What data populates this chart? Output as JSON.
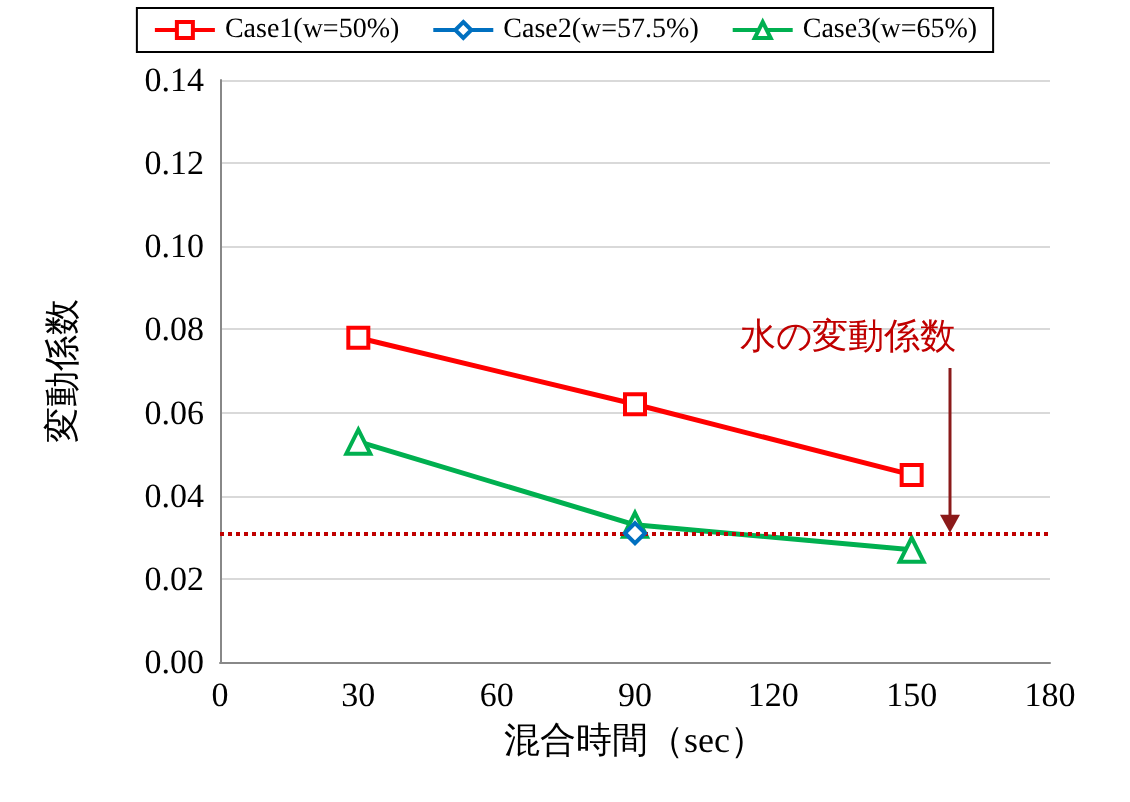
{
  "chart_data": {
    "type": "line",
    "xlabel": "混合時間（sec）",
    "ylabel": "変動係数",
    "x": [
      30,
      90,
      150
    ],
    "series": [
      {
        "name": "Case1(w=50%)",
        "color": "#ff0000",
        "marker": "square",
        "values": [
          0.078,
          0.062,
          0.045
        ]
      },
      {
        "name": "Case2(w=57.5%)",
        "color": "#0070c0",
        "marker": "diamond",
        "values": [
          null,
          0.031,
          null
        ]
      },
      {
        "name": "Case3(w=65%)",
        "color": "#00b050",
        "marker": "triangle",
        "values": [
          0.053,
          0.033,
          0.027
        ]
      }
    ],
    "xlim": [
      0,
      180
    ],
    "xticks": [
      0,
      30,
      60,
      90,
      120,
      150,
      180
    ],
    "ylim": [
      0,
      0.14
    ],
    "yticks": [
      {
        "value": 0,
        "label": "0.00"
      },
      0.02,
      0.04,
      0.06,
      0.08,
      {
        "value": 0.1,
        "label": "0.10"
      },
      0.12,
      0.14
    ],
    "ref_lines": [
      {
        "axis": "y",
        "value": 0.031,
        "label": "水の変動係数",
        "color": "#c00000",
        "line_style": "dotted"
      }
    ],
    "grid": "y",
    "legend": "top",
    "line_style": "solid"
  }
}
